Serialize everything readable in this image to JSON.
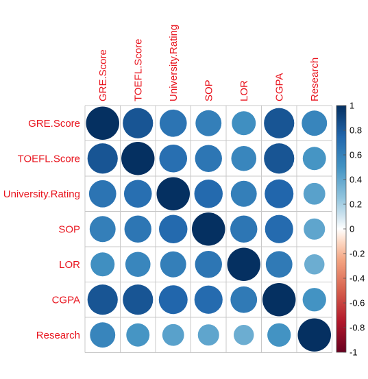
{
  "chart_data": {
    "type": "heatmap",
    "variables": [
      "GRE.Score",
      "TOEFL.Score",
      "University.Rating",
      "SOP",
      "LOR",
      "CGPA",
      "Research"
    ],
    "matrix": [
      [
        1.0,
        0.83,
        0.67,
        0.61,
        0.52,
        0.83,
        0.58
      ],
      [
        0.83,
        1.0,
        0.7,
        0.66,
        0.57,
        0.83,
        0.49
      ],
      [
        0.67,
        0.7,
        1.0,
        0.73,
        0.61,
        0.75,
        0.43
      ],
      [
        0.61,
        0.66,
        0.73,
        1.0,
        0.66,
        0.72,
        0.41
      ],
      [
        0.52,
        0.57,
        0.61,
        0.66,
        1.0,
        0.64,
        0.37
      ],
      [
        0.83,
        0.83,
        0.75,
        0.72,
        0.64,
        1.0,
        0.5
      ],
      [
        0.58,
        0.49,
        0.43,
        0.41,
        0.37,
        0.5,
        1.0
      ]
    ],
    "colorbar_ticks": [
      "1",
      "0.8",
      "0.6",
      "0.4",
      "0.2",
      "0",
      "-0.2",
      "-0.4",
      "-0.6",
      "-0.8",
      "-1"
    ],
    "colorbar_range": [
      -1,
      1
    ],
    "label_color": "#e8141e",
    "color_stops": [
      {
        "v": -1.0,
        "c": "#67001f"
      },
      {
        "v": -0.75,
        "c": "#b2182b"
      },
      {
        "v": -0.5,
        "c": "#d6604d"
      },
      {
        "v": -0.25,
        "c": "#f4a582"
      },
      {
        "v": -0.1,
        "c": "#fddbc7"
      },
      {
        "v": 0.0,
        "c": "#ffffff"
      },
      {
        "v": 0.1,
        "c": "#d1e5f0"
      },
      {
        "v": 0.25,
        "c": "#92c5de"
      },
      {
        "v": 0.5,
        "c": "#4393c3"
      },
      {
        "v": 0.75,
        "c": "#2166ac"
      },
      {
        "v": 1.0,
        "c": "#053061"
      }
    ]
  }
}
